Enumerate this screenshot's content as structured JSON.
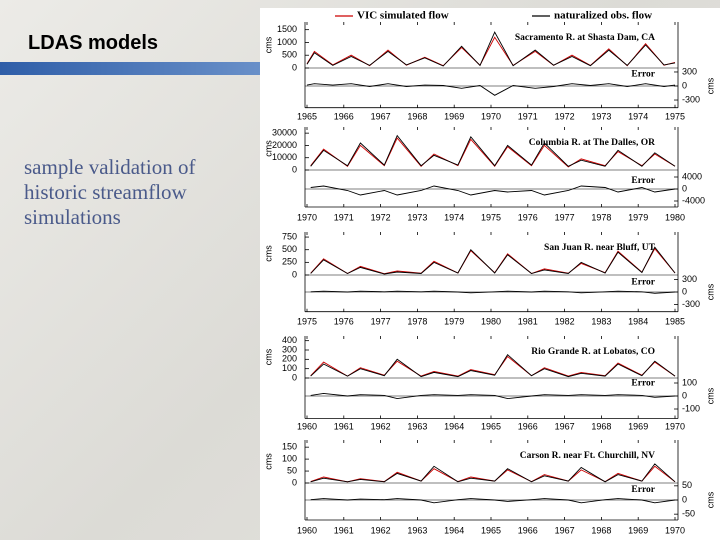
{
  "slide": {
    "title": "LDAS models",
    "text": "sample validation of historic streamflow simulations"
  },
  "legend": [
    {
      "name": "VIC simulated flow",
      "color": "#cc0000"
    },
    {
      "name": "naturalized obs. flow",
      "color": "#000000"
    }
  ],
  "chart_data": [
    {
      "type": "line",
      "title": "Sacramento R. at Shasta Dam, CA",
      "ylabel": "cms",
      "y2label": "cms",
      "error_label": "Error",
      "x": [
        1965.0,
        1965.2,
        1965.7,
        1966.2,
        1966.7,
        1967.2,
        1967.7,
        1968.2,
        1968.7,
        1969.2,
        1969.7,
        1970.1,
        1970.6,
        1971.2,
        1971.7,
        1972.2,
        1972.7,
        1973.2,
        1973.7,
        1974.2,
        1974.7,
        1975.0
      ],
      "series": [
        {
          "color": "#cc0000",
          "values": [
            170,
            650,
            120,
            500,
            90,
            700,
            110,
            420,
            90,
            800,
            110,
            1200,
            100,
            650,
            100,
            500,
            100,
            750,
            90,
            950,
            110,
            220
          ]
        },
        {
          "color": "#000000",
          "values": [
            150,
            600,
            100,
            450,
            100,
            650,
            120,
            400,
            80,
            850,
            100,
            1400,
            90,
            700,
            110,
            450,
            90,
            700,
            100,
            900,
            120,
            200
          ]
        },
        {
          "color": "#000000",
          "axis": "y2",
          "values": [
            20,
            50,
            20,
            50,
            -10,
            50,
            -10,
            20,
            10,
            -50,
            10,
            -200,
            10,
            -50,
            -10,
            50,
            10,
            50,
            -10,
            50,
            -10,
            20
          ]
        }
      ],
      "xlim": [
        1965,
        1975
      ],
      "xticks": [
        1965,
        1966,
        1967,
        1968,
        1969,
        1970,
        1971,
        1972,
        1973,
        1974,
        1975
      ],
      "ylim": [
        0,
        1800
      ],
      "yticks": [
        0,
        500,
        1000,
        1500
      ],
      "y2lim": [
        -400,
        400
      ],
      "y2ticks": [
        -300,
        0,
        300
      ]
    },
    {
      "type": "line",
      "title": "Columbia R. at The Dalles, OR",
      "ylabel": "cms",
      "error_label": "Error",
      "x": [
        1970.1,
        1970.45,
        1971.1,
        1971.45,
        1972.1,
        1972.45,
        1973.1,
        1973.45,
        1974.1,
        1974.45,
        1975.1,
        1975.45,
        1976.1,
        1976.45,
        1977.1,
        1977.45,
        1978.1,
        1978.45,
        1979.1,
        1979.45,
        1980.0
      ],
      "series": [
        {
          "color": "#cc0000",
          "values": [
            3500,
            17000,
            3000,
            20000,
            3500,
            26000,
            3000,
            13000,
            3500,
            25000,
            3000,
            19000,
            3500,
            20000,
            2500,
            9000,
            3500,
            15000,
            3500,
            13000,
            3000
          ]
        },
        {
          "color": "#000000",
          "values": [
            3000,
            16000,
            3500,
            22000,
            4000,
            28000,
            3500,
            12000,
            4000,
            27000,
            3500,
            20000,
            4000,
            22000,
            3000,
            8000,
            3000,
            16000,
            3000,
            14000,
            3000
          ]
        },
        {
          "color": "#000000",
          "axis": "y2",
          "values": [
            500,
            1000,
            -500,
            -2000,
            -500,
            -2000,
            -500,
            1000,
            -500,
            -2000,
            -500,
            -1000,
            -500,
            -2000,
            -500,
            1000,
            500,
            -1000,
            500,
            -1000,
            0
          ]
        }
      ],
      "xlim": [
        1970,
        1980
      ],
      "xticks": [
        1970,
        1971,
        1972,
        1973,
        1974,
        1975,
        1976,
        1977,
        1978,
        1979,
        1980
      ],
      "ylim": [
        0,
        35000
      ],
      "yticks": [
        0,
        10000,
        20000,
        30000
      ],
      "y2lim": [
        -5000,
        5000
      ],
      "y2ticks": [
        -4000,
        0,
        4000
      ]
    },
    {
      "type": "line",
      "title": "San Juan R. near Bluff, UT",
      "ylabel": "cms",
      "y2label": "cms",
      "error_label": "Error",
      "x": [
        1975.1,
        1975.45,
        1976.1,
        1976.45,
        1977.1,
        1977.45,
        1978.1,
        1978.45,
        1979.1,
        1979.45,
        1980.1,
        1980.45,
        1981.1,
        1981.45,
        1982.1,
        1982.45,
        1983.1,
        1983.45,
        1984.1,
        1984.45,
        1985.0
      ],
      "series": [
        {
          "color": "#cc0000",
          "values": [
            35,
            320,
            30,
            170,
            25,
            80,
            35,
            270,
            40,
            480,
            45,
            420,
            30,
            120,
            35,
            230,
            45,
            470,
            55,
            520,
            40
          ]
        },
        {
          "color": "#000000",
          "values": [
            30,
            300,
            30,
            150,
            20,
            60,
            30,
            250,
            40,
            500,
            40,
            400,
            30,
            100,
            30,
            250,
            40,
            450,
            50,
            550,
            40
          ]
        },
        {
          "color": "#000000",
          "axis": "y2",
          "values": [
            5,
            20,
            0,
            20,
            5,
            20,
            5,
            20,
            0,
            -20,
            5,
            20,
            0,
            20,
            5,
            -20,
            5,
            20,
            5,
            -30,
            0
          ]
        }
      ],
      "xlim": [
        1975,
        1985
      ],
      "xticks": [
        1975,
        1976,
        1977,
        1978,
        1979,
        1980,
        1981,
        1982,
        1983,
        1984,
        1985
      ],
      "ylim": [
        0,
        850
      ],
      "yticks": [
        0,
        250,
        500,
        750
      ],
      "y2lim": [
        -400,
        400
      ],
      "y2ticks": [
        -300,
        0,
        300
      ]
    },
    {
      "type": "line",
      "title": "Rio Grande R. at Lobatos, CO",
      "ylabel": "cms",
      "y2label": "cms",
      "error_label": "Error",
      "x": [
        1960.1,
        1960.45,
        1961.1,
        1961.45,
        1962.1,
        1962.45,
        1963.1,
        1963.45,
        1964.1,
        1964.45,
        1965.1,
        1965.45,
        1966.1,
        1966.45,
        1967.1,
        1967.45,
        1968.1,
        1968.45,
        1969.1,
        1969.45,
        1970.0
      ],
      "series": [
        {
          "color": "#cc0000",
          "values": [
            25,
            170,
            20,
            110,
            30,
            180,
            20,
            70,
            20,
            90,
            35,
            230,
            25,
            110,
            20,
            60,
            25,
            160,
            30,
            170,
            20
          ]
        },
        {
          "color": "#000000",
          "values": [
            20,
            150,
            20,
            100,
            25,
            200,
            15,
            60,
            15,
            80,
            30,
            250,
            25,
            100,
            15,
            50,
            20,
            150,
            25,
            180,
            20
          ]
        },
        {
          "color": "#000000",
          "axis": "y2",
          "values": [
            5,
            20,
            0,
            10,
            5,
            -20,
            5,
            10,
            5,
            10,
            5,
            -20,
            0,
            10,
            5,
            10,
            5,
            10,
            5,
            -10,
            0
          ]
        }
      ],
      "xlim": [
        1960,
        1970
      ],
      "xticks": [
        1960,
        1961,
        1962,
        1963,
        1964,
        1965,
        1966,
        1967,
        1968,
        1969,
        1970
      ],
      "ylim": [
        0,
        450
      ],
      "yticks": [
        0,
        100,
        200,
        300,
        400
      ],
      "y2lim": [
        -150,
        150
      ],
      "y2ticks": [
        -100,
        0,
        100
      ]
    },
    {
      "type": "line",
      "title": "Carson R. near Ft. Churchill, NV",
      "ylabel": "cms",
      "y2label": "cms",
      "error_label": "Error",
      "x": [
        1960.1,
        1960.45,
        1961.1,
        1961.45,
        1962.1,
        1962.45,
        1963.1,
        1963.45,
        1964.1,
        1964.45,
        1965.1,
        1965.45,
        1966.1,
        1966.45,
        1967.1,
        1967.45,
        1968.1,
        1968.45,
        1969.1,
        1969.45,
        1970.0
      ],
      "series": [
        {
          "color": "#cc0000",
          "values": [
            6,
            25,
            5,
            18,
            6,
            45,
            8,
            60,
            6,
            25,
            8,
            55,
            6,
            35,
            8,
            55,
            6,
            40,
            8,
            70,
            5
          ]
        },
        {
          "color": "#000000",
          "values": [
            5,
            20,
            5,
            15,
            5,
            40,
            8,
            70,
            5,
            20,
            8,
            60,
            5,
            30,
            8,
            65,
            5,
            35,
            8,
            80,
            5
          ]
        },
        {
          "color": "#000000",
          "axis": "y2",
          "values": [
            1,
            5,
            0,
            3,
            1,
            5,
            0,
            -10,
            1,
            5,
            0,
            -5,
            1,
            5,
            0,
            -10,
            1,
            5,
            0,
            -10,
            0
          ]
        }
      ],
      "xlim": [
        1960,
        1970
      ],
      "xticks": [
        1960,
        1961,
        1962,
        1963,
        1964,
        1965,
        1966,
        1967,
        1968,
        1969,
        1970
      ],
      "ylim": [
        0,
        180
      ],
      "yticks": [
        0,
        50,
        100,
        150
      ],
      "y2lim": [
        -60,
        60
      ],
      "y2ticks": [
        -50,
        0,
        50
      ]
    }
  ]
}
